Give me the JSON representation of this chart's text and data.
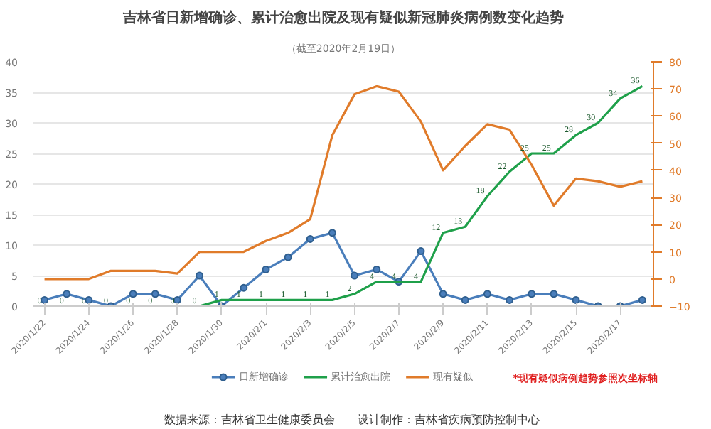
{
  "chart_data": {
    "type": "line",
    "title": "吉林省日新增确诊、累计治愈出院及现有疑似新冠肺炎病例数变化趋势",
    "subtitle": "（截至2020年2月19日）",
    "x": [
      "2020-01-22",
      "2020-01-23",
      "2020-01-24",
      "2020-01-25",
      "2020-01-26",
      "2020-01-27",
      "2020-01-28",
      "2020-01-29",
      "2020-01-30",
      "2020-01-31",
      "2020-02-01",
      "2020-02-02",
      "2020-02-03",
      "2020-02-04",
      "2020-02-05",
      "2020-02-06",
      "2020-02-07",
      "2020-02-08",
      "2020-02-09",
      "2020-02-10",
      "2020-02-11",
      "2020-02-12",
      "2020-02-13",
      "2020-02-14",
      "2020-02-15",
      "2020-02-16",
      "2020-02-17",
      "2020-02-18"
    ],
    "series": [
      {
        "name": "日新增确诊",
        "color": "#4a7ebb",
        "marker": "circle",
        "values": [
          1,
          2,
          1,
          0,
          2,
          2,
          1,
          5,
          0,
          3,
          6,
          8,
          11,
          12,
          5,
          6,
          4,
          9,
          2,
          1,
          2,
          1,
          2,
          2,
          1,
          0,
          0,
          1
        ]
      },
      {
        "name": "累计治愈出院",
        "color": "#1fa04a",
        "marker": "none",
        "data_labels": true,
        "values": [
          0,
          0,
          0,
          0,
          0,
          0,
          0,
          0,
          1,
          1,
          1,
          1,
          1,
          1,
          2,
          4,
          4,
          4,
          12,
          13,
          18,
          22,
          25,
          25,
          28,
          30,
          34,
          36
        ]
      },
      {
        "name": "现有疑似",
        "color": "#e07b2a",
        "marker": "none",
        "axis": "y2",
        "values": [
          0,
          0,
          0,
          3,
          3,
          3,
          2,
          10,
          10,
          10,
          14,
          17,
          22,
          53,
          68,
          71,
          69,
          58,
          40,
          49,
          57,
          55,
          42,
          27,
          37,
          36,
          34,
          36
        ]
      }
    ],
    "xlim": [
      "2020-01-21T12:00",
      "2020-02-18T12:00"
    ],
    "xticks": [
      {
        "value": "2020-01-22",
        "label": "2020/1/22"
      },
      {
        "value": "2020-01-24",
        "label": "2020/1/24"
      },
      {
        "value": "2020-01-26",
        "label": "2020/1/26"
      },
      {
        "value": "2020-01-28",
        "label": "2020/1/28"
      },
      {
        "value": "2020-01-30",
        "label": "2020/1/30"
      },
      {
        "value": "2020-02-01",
        "label": "2020/2/1"
      },
      {
        "value": "2020-02-03",
        "label": "2020/2/3"
      },
      {
        "value": "2020-02-05",
        "label": "2020/2/5"
      },
      {
        "value": "2020-02-07",
        "label": "2020/2/7"
      },
      {
        "value": "2020-02-09",
        "label": "2020/2/9"
      },
      {
        "value": "2020-02-11",
        "label": "2020/2/11"
      },
      {
        "value": "2020-02-13",
        "label": "2020/2/13"
      },
      {
        "value": "2020-02-15",
        "label": "2020/2/15"
      },
      {
        "value": "2020-02-17",
        "label": "2020/2/17"
      }
    ],
    "ylim": [
      0,
      40
    ],
    "yticks": [
      0,
      5,
      10,
      15,
      20,
      25,
      30,
      35,
      40
    ],
    "y2lim": [
      -10,
      80
    ],
    "y2ticks": [
      -10,
      0,
      10,
      20,
      30,
      40,
      50,
      60,
      70,
      80
    ],
    "grid": "y",
    "legend": "bottom",
    "line_style": "solid",
    "annotations": [
      "*现有疑似病例趋势参照次坐标轴",
      "数据来源：吉林省卫生健康委员会　　设计制作：吉林省疾病预防控制中心"
    ]
  }
}
